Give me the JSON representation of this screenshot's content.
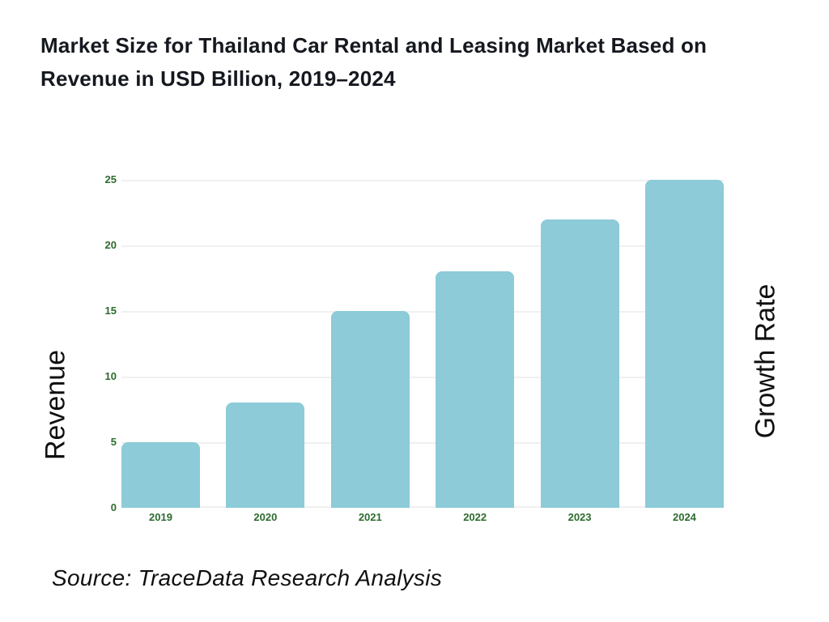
{
  "title": {
    "line1": "Market Size for Thailand Car Rental and Leasing Market Based on",
    "line2": "Revenue in USD Billion, 2019–2024"
  },
  "chart_data": {
    "type": "bar",
    "title": "Market Size for Thailand Car Rental and Leasing Market Based on Revenue in USD Billion, 2019–2024",
    "categories": [
      "2019",
      "2020",
      "2021",
      "2022",
      "2023",
      "2024"
    ],
    "values": [
      5,
      8,
      15,
      18,
      22,
      25
    ],
    "ylabel_left": "Revenue",
    "ylabel_right": "Growth Rate",
    "yticks": [
      0,
      5,
      10,
      15,
      20,
      25
    ],
    "ylim": [
      0,
      25
    ],
    "grid": true,
    "legend_position": "none",
    "bar_color": "#8ccbd7",
    "tick_label_color": "#2d6a2e",
    "gridline_color": "#f0f0f0"
  },
  "source": {
    "text": "Source: TraceData Research Analysis"
  }
}
